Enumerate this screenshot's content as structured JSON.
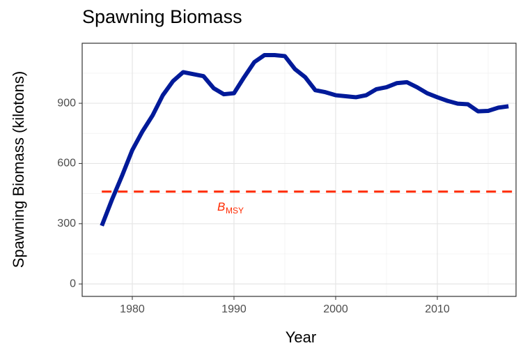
{
  "chart_data": {
    "type": "line",
    "title": "Spawning Biomass",
    "x_label": "Year",
    "y_label": "Spawning Biomass (kilotons)",
    "x": [
      1977,
      1978,
      1979,
      1980,
      1981,
      1982,
      1983,
      1984,
      1985,
      1986,
      1987,
      1988,
      1989,
      1990,
      1991,
      1992,
      1993,
      1994,
      1995,
      1996,
      1997,
      1998,
      1999,
      2000,
      2001,
      2002,
      2003,
      2004,
      2005,
      2006,
      2007,
      2008,
      2009,
      2010,
      2011,
      2012,
      2013,
      2014,
      2015,
      2016,
      2017
    ],
    "series": [
      {
        "color": "#001a99",
        "values": [
          290,
          420,
          540,
          667,
          760,
          840,
          940,
          1010,
          1055,
          1045,
          1035,
          975,
          945,
          950,
          1030,
          1105,
          1140,
          1140,
          1135,
          1070,
          1030,
          965,
          955,
          940,
          935,
          930,
          940,
          970,
          980,
          1000,
          1005,
          980,
          950,
          930,
          912,
          898,
          895,
          860,
          862,
          878,
          885
        ]
      }
    ],
    "hline": {
      "value": 460,
      "color": "#ff2a00"
    },
    "annotation": {
      "text": "B",
      "subscript": "MSY",
      "x": 1990,
      "y": 380,
      "color": "#ff2a00"
    },
    "xlim": [
      1975.07,
      2017.74
    ],
    "ylim": [
      -62,
      1199
    ],
    "xticks": [
      1980,
      1990,
      2000,
      2010
    ],
    "yticks": [
      0,
      300,
      600,
      900
    ],
    "xminor": [
      1985,
      1995,
      2005,
      2015
    ],
    "yminor": [
      150,
      450,
      750,
      1050
    ],
    "grid": true
  }
}
